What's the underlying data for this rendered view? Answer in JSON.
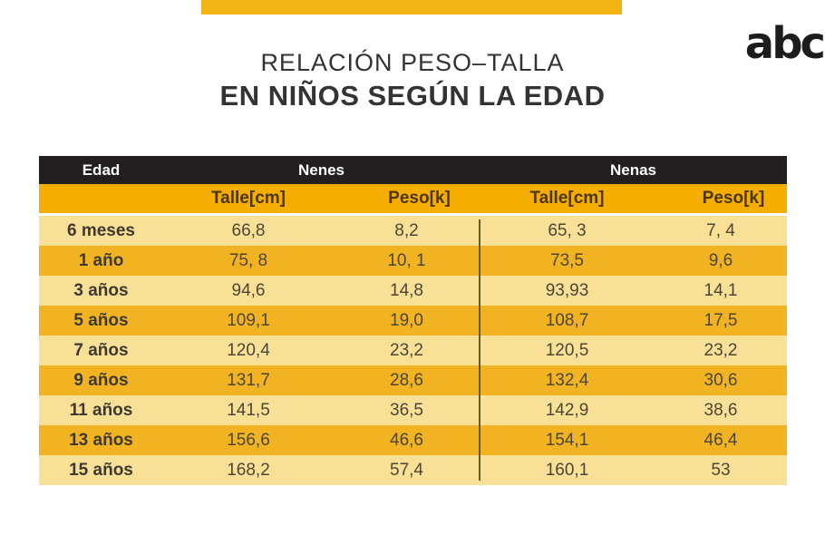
{
  "header": {
    "logo_text": "abc",
    "title_line1": "RELACIÓN PESO–TALLA",
    "title_line2": "EN NIÑOS SEGÚN LA EDAD"
  },
  "table": {
    "header": {
      "edad": "Edad",
      "nenes": "Nenes",
      "nenas": "Nenas"
    },
    "subheader": {
      "talle": "Talle[cm]",
      "peso": "Peso[k]"
    }
  },
  "colors": {
    "top_bar": "#F2B315",
    "header_black": "#231F20",
    "subheader_amber": "#F5AD00",
    "row_gold": "#F1B322",
    "row_light": "#F8E096",
    "divider_line": "#6A5C22",
    "header_text": "#FFFFFF",
    "cell_text": "#4D4636",
    "title_text": "#333333",
    "logo_black": "#1C1C1C"
  },
  "chart_data": {
    "type": "table",
    "title": "RELACIÓN PESO–TALLA EN NIÑOS SEGÚN LA EDAD",
    "column_groups": [
      "Edad",
      "Nenes",
      "Nenas"
    ],
    "columns": [
      "Edad",
      "Nenes Talle[cm]",
      "Nenes Peso[k]",
      "Nenas Talle[cm]",
      "Nenas Peso[k]"
    ],
    "rows": [
      [
        "6 meses",
        "66,8",
        "8,2",
        "65, 3",
        "7, 4"
      ],
      [
        "1 año",
        "75, 8",
        "10, 1",
        "73,5",
        "9,6"
      ],
      [
        "3 años",
        "94,6",
        "14,8",
        "93,93",
        "14,1"
      ],
      [
        "5 años",
        "109,1",
        "19,0",
        "108,7",
        "17,5"
      ],
      [
        "7 años",
        "120,4",
        "23,2",
        "120,5",
        "23,2"
      ],
      [
        "9 años",
        "131,7",
        "28,6",
        "132,4",
        "30,6"
      ],
      [
        "11 años",
        "141,5",
        "36,5",
        "142,9",
        "38,6"
      ],
      [
        "13 años",
        "156,6",
        "46,6",
        "154,1",
        "46,4"
      ],
      [
        "15 años",
        "168,2",
        "57,4",
        "160,1",
        "53"
      ]
    ]
  }
}
